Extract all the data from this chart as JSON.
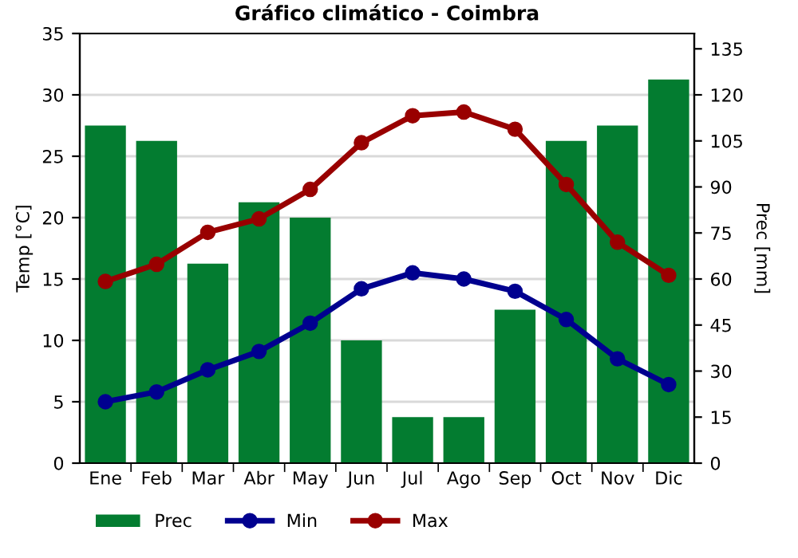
{
  "chart_data": {
    "type": "bar",
    "title": "Gráfico climático - Coimbra",
    "ylabel": "Temp [°C]",
    "y2label": "Prec [mm]",
    "categories": [
      "Ene",
      "Feb",
      "Mar",
      "Abr",
      "May",
      "Jun",
      "Jul",
      "Ago",
      "Sep",
      "Oct",
      "Nov",
      "Dic"
    ],
    "series": [
      {
        "name": "Prec",
        "axis": "y2",
        "color": "#037c30",
        "values": [
          110,
          105,
          65,
          85,
          80,
          40,
          15,
          15,
          50,
          105,
          110,
          125
        ]
      },
      {
        "name": "Min",
        "type": "line",
        "color": "#00008f",
        "values": [
          5.0,
          5.8,
          7.6,
          9.1,
          11.4,
          14.2,
          15.5,
          15.0,
          14.0,
          11.7,
          8.5,
          6.4
        ]
      },
      {
        "name": "Max",
        "type": "line",
        "color": "#990000",
        "values": [
          14.8,
          16.2,
          18.8,
          19.9,
          22.3,
          26.1,
          28.3,
          28.6,
          27.2,
          22.7,
          18.0,
          15.3
        ]
      }
    ],
    "ylim": [
      0,
      35
    ],
    "yticks": [
      0,
      5,
      10,
      15,
      20,
      25,
      30,
      35
    ],
    "y2lim": [
      0,
      140
    ],
    "y2ticks": [
      0,
      15,
      30,
      45,
      60,
      75,
      90,
      105,
      120,
      135
    ],
    "grid": true,
    "legend": "bottom",
    "marker": "circle",
    "line_style": "solid"
  }
}
